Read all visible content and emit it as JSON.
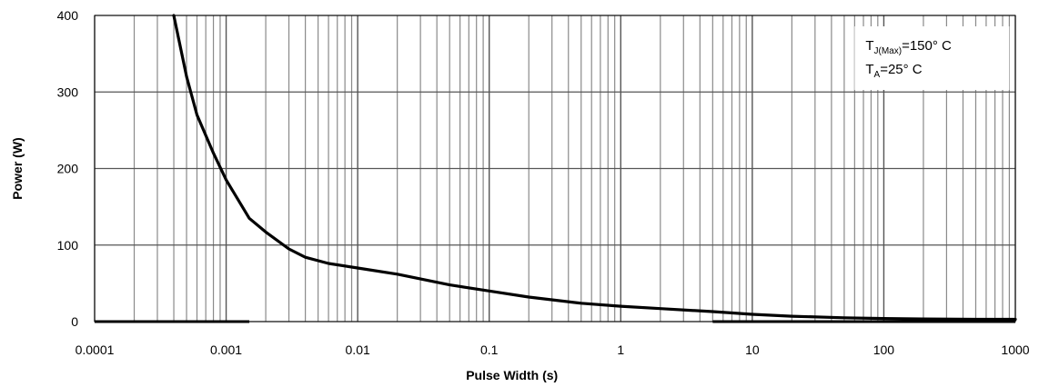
{
  "chart_data": {
    "type": "line",
    "title": "",
    "xlabel": "Pulse Width (s)",
    "ylabel": "Power (W)",
    "x_scale": "log",
    "xlim": [
      0.0001,
      1000
    ],
    "ylim": [
      0,
      400
    ],
    "grid": true,
    "x_ticks": [
      "0.0001",
      "0.001",
      "0.01",
      "0.1",
      "1",
      "10",
      "100",
      "1000"
    ],
    "y_ticks": [
      "0",
      "100",
      "200",
      "300",
      "400"
    ],
    "annotation": {
      "line1": {
        "main": "T",
        "sub": "J(Max)",
        "rest": "=150° C"
      },
      "line2": {
        "main": "T",
        "sub": "A",
        "rest": "=25° C"
      }
    },
    "series": [
      {
        "color": "#000000",
        "x": [
          0.0004,
          0.0005,
          0.0006,
          0.0008,
          0.001,
          0.0015,
          0.002,
          0.003,
          0.004,
          0.006,
          0.01,
          0.02,
          0.05,
          0.1,
          0.2,
          0.5,
          1,
          2,
          5,
          10,
          20,
          50,
          100,
          200,
          500,
          1000
        ],
        "y": [
          400,
          320,
          270,
          220,
          185,
          135,
          117,
          95,
          84,
          76,
          70,
          62,
          48,
          40,
          32,
          24,
          20,
          17,
          13,
          9.5,
          7,
          5,
          4,
          3.5,
          3,
          3
        ]
      }
    ]
  }
}
